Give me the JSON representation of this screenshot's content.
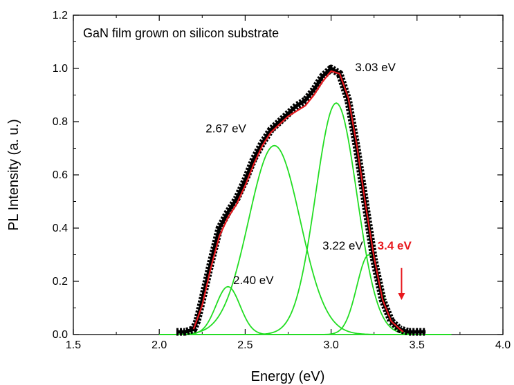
{
  "chart_data": {
    "type": "line",
    "title": "GaN film grown on silicon substrate",
    "xlabel": "Energy (eV)",
    "ylabel": "PL Intensity (a. u.)",
    "xlim": [
      1.5,
      4.0
    ],
    "ylim": [
      0.0,
      1.2
    ],
    "xticks": [
      "1.5",
      "2.0",
      "2.5",
      "3.0",
      "3.5",
      "4.0"
    ],
    "yticks": [
      "0.0",
      "0.2",
      "0.4",
      "0.6",
      "0.8",
      "1.0",
      "1.2"
    ],
    "grid": false,
    "series": [
      {
        "role": "measured",
        "color": "#000000",
        "style": "thick squares",
        "x": [
          2.1,
          2.15,
          2.2,
          2.22,
          2.25,
          2.3,
          2.35,
          2.4,
          2.45,
          2.5,
          2.55,
          2.6,
          2.65,
          2.7,
          2.75,
          2.8,
          2.85,
          2.9,
          2.95,
          3.0,
          3.05,
          3.1,
          3.15,
          3.2,
          3.25,
          3.3,
          3.35,
          3.4,
          3.45,
          3.5,
          3.55
        ],
        "y": [
          0.01,
          0.01,
          0.02,
          0.05,
          0.13,
          0.27,
          0.4,
          0.46,
          0.51,
          0.58,
          0.66,
          0.72,
          0.77,
          0.8,
          0.83,
          0.86,
          0.88,
          0.92,
          0.97,
          1.0,
          0.98,
          0.88,
          0.7,
          0.49,
          0.28,
          0.13,
          0.05,
          0.02,
          0.01,
          0.01,
          0.01
        ]
      },
      {
        "role": "fit",
        "color": "#e8191e",
        "style": "line",
        "x": [
          2.2,
          2.25,
          2.3,
          2.35,
          2.4,
          2.45,
          2.5,
          2.55,
          2.6,
          2.65,
          2.7,
          2.75,
          2.8,
          2.85,
          2.9,
          2.95,
          3.0,
          3.05,
          3.1,
          3.15,
          3.2,
          3.25,
          3.3,
          3.35,
          3.4,
          3.42
        ],
        "y": [
          0.02,
          0.11,
          0.25,
          0.37,
          0.44,
          0.49,
          0.56,
          0.64,
          0.71,
          0.76,
          0.79,
          0.82,
          0.84,
          0.86,
          0.9,
          0.95,
          0.99,
          0.98,
          0.89,
          0.71,
          0.49,
          0.29,
          0.13,
          0.05,
          0.02,
          0.01
        ]
      }
    ],
    "gaussian_components": {
      "color": "#22dd22",
      "peaks": [
        {
          "center": 2.4,
          "amplitude": 0.18,
          "sigma": 0.07
        },
        {
          "center": 2.67,
          "amplitude": 0.71,
          "sigma": 0.15
        },
        {
          "center": 3.03,
          "amplitude": 0.87,
          "sigma": 0.12
        },
        {
          "center": 3.22,
          "amplitude": 0.3,
          "sigma": 0.07
        }
      ]
    },
    "annotations": [
      {
        "text": "3.03 eV",
        "x": 3.14,
        "y": 0.99,
        "color": "#000000",
        "bold": false,
        "anchor": "start"
      },
      {
        "text": "2.67 eV",
        "x": 2.27,
        "y": 0.76,
        "color": "#000000",
        "bold": false,
        "anchor": "start"
      },
      {
        "text": "3.22 eV",
        "x": 2.95,
        "y": 0.32,
        "color": "#000000",
        "bold": false,
        "anchor": "start"
      },
      {
        "text": "2.40 eV",
        "x": 2.43,
        "y": 0.19,
        "color": "#000000",
        "bold": false,
        "anchor": "start"
      },
      {
        "text": "3.4 eV",
        "x": 3.27,
        "y": 0.32,
        "color": "#e8191e",
        "bold": true,
        "anchor": "start"
      }
    ],
    "arrow": {
      "x": 3.41,
      "y_from": 0.25,
      "y_to": 0.13,
      "color": "#e8191e"
    }
  }
}
